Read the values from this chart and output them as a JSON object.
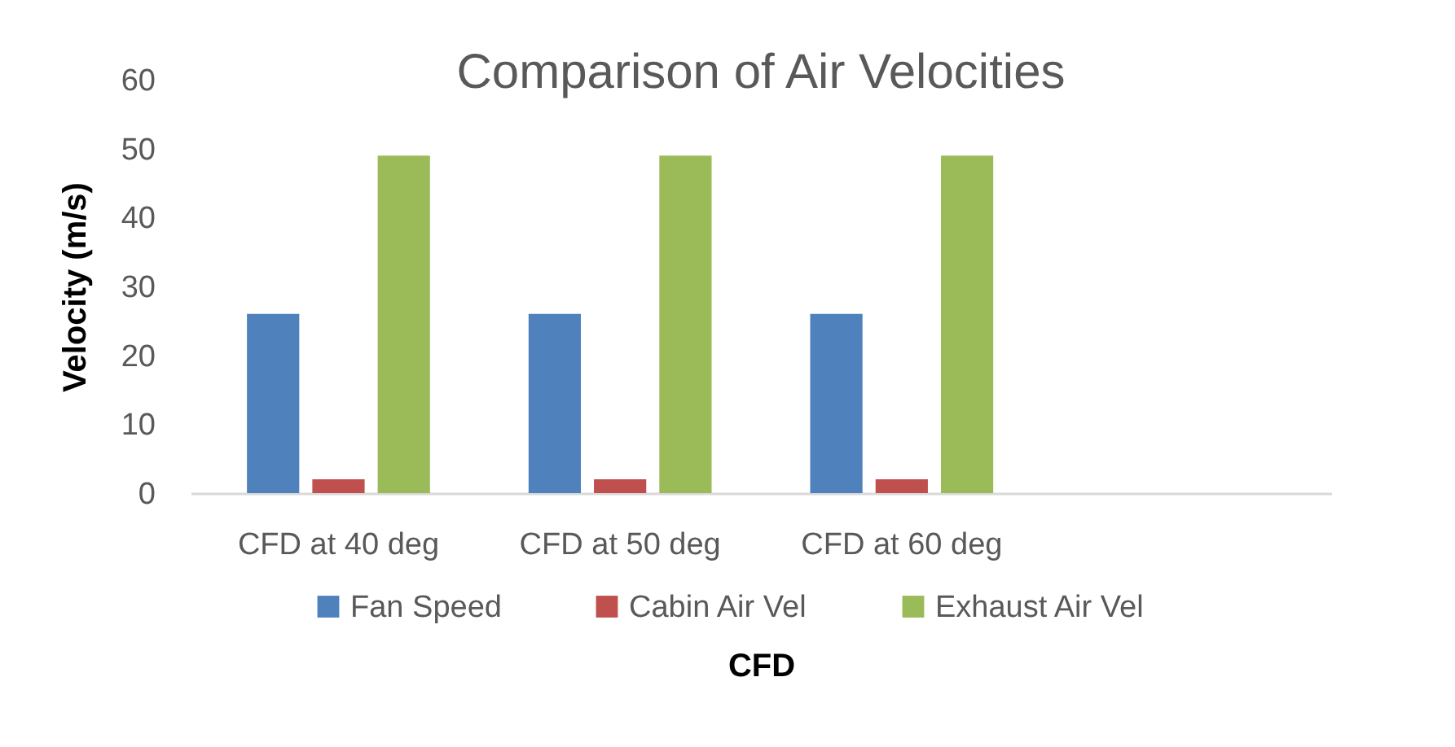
{
  "chart_data": {
    "type": "bar",
    "title": "Comparison of Air Velocities",
    "xlabel": "CFD",
    "ylabel": "Velocity (m/s)",
    "categories": [
      "CFD at 40 deg",
      "CFD at 50 deg",
      "CFD at 60 deg",
      null
    ],
    "series": [
      {
        "name": "Fan Speed",
        "color": "#4f81bd",
        "values": [
          26,
          26,
          26,
          null
        ]
      },
      {
        "name": "Cabin Air Vel",
        "color": "#c0504d",
        "values": [
          2,
          2,
          2,
          null
        ]
      },
      {
        "name": "Exhaust Air Vel",
        "color": "#9bbb59",
        "values": [
          49,
          49,
          49,
          null
        ]
      }
    ],
    "ylim": [
      0,
      60
    ],
    "yticks": [
      0,
      10,
      20,
      30,
      40,
      50,
      60
    ],
    "grid": false,
    "legend": "bottom"
  }
}
